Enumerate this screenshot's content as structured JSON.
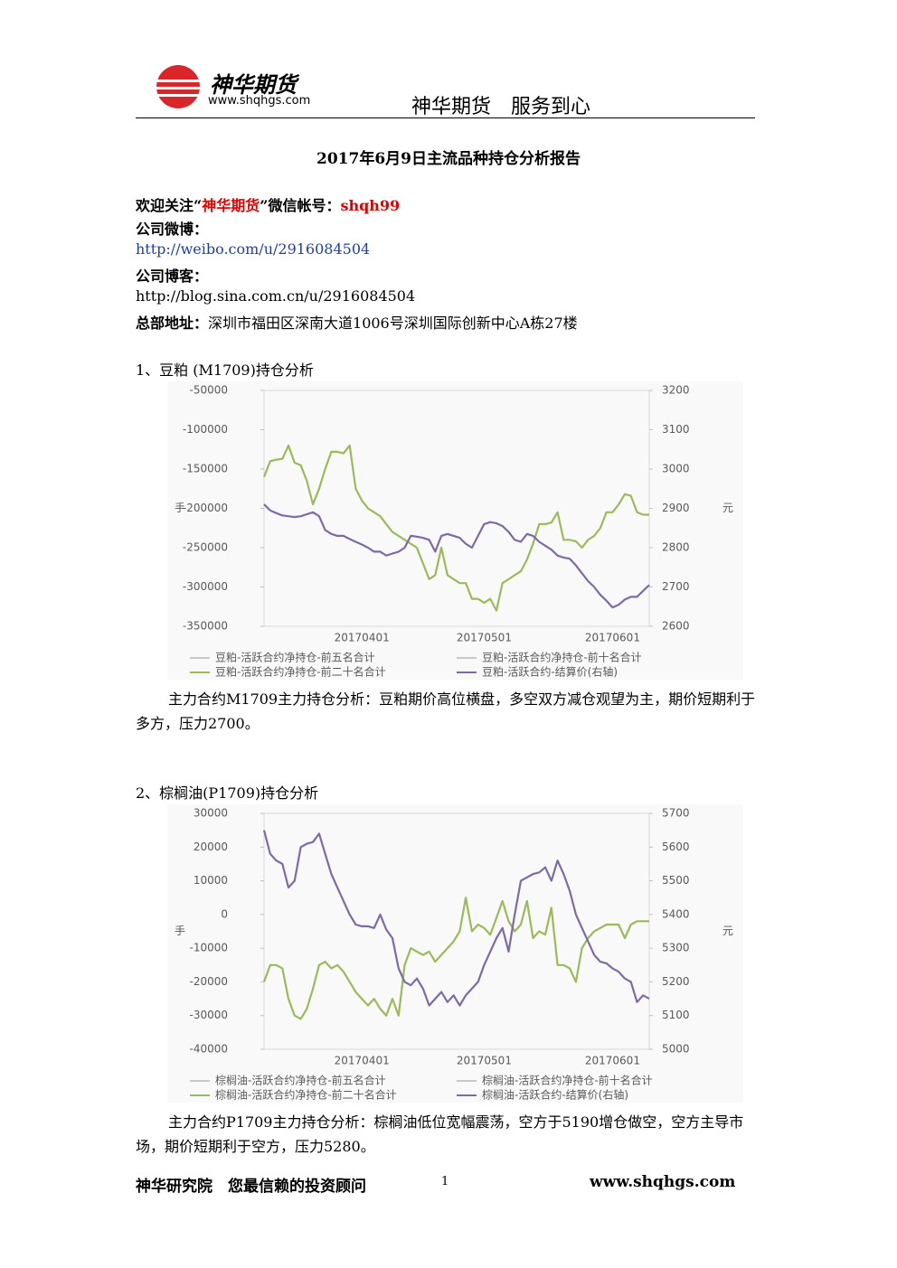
{
  "header": {
    "logo_name": "神华期货",
    "logo_url": "www.shqhgs.com",
    "slogan": "神华期货　服务到心"
  },
  "title": "2017年6月9日主流品种持仓分析报告",
  "contact": {
    "follow_prefix": "欢迎关注“",
    "follow_name": "神华期货",
    "follow_suffix": "”微信帐号：",
    "wechat": "shqh99",
    "weibo_label": "公司微博：",
    "weibo_url": "http://weibo.com/u/2916084504",
    "blog_label": "公司博客：",
    "blog_url": "http://blog.sina.com.cn/u/2916084504",
    "address_label": "总部地址：",
    "address": "深圳市福田区深南大道1006号深圳国际创新中心A栋27楼"
  },
  "sections": [
    {
      "heading": "1、豆粕 (M1709)持仓分析",
      "analysis": "主力合约M1709主力持仓分析：豆粕期价高位横盘，多空双方减仓观望为主，期价短期利于多方，压力2700。"
    },
    {
      "heading": "2、棕榈油(P1709)持仓分析",
      "analysis": "主力合约P1709主力持仓分析：棕榈油低位宽幅震荡，空方于5190增仓做空，空方主导市场，期价短期利于空方，压力5280。"
    }
  ],
  "footer": {
    "left": "神华研究院　您最信赖的投资顾问",
    "page": "1",
    "right": "www.shqhgs.com"
  },
  "chart_data": [
    {
      "type": "line",
      "ylabel": "手",
      "y2label": "元",
      "ylim": [
        -350000,
        -50000
      ],
      "yticks": [
        -350000,
        -300000,
        -250000,
        -200000,
        -150000,
        -100000,
        -50000
      ],
      "y2lim": [
        2600,
        3200
      ],
      "y2ticks": [
        2600,
        2700,
        2800,
        2900,
        3000,
        3100,
        3200
      ],
      "categories": [
        null,
        null,
        null,
        null,
        null,
        null,
        null,
        null,
        null,
        null,
        null,
        null,
        null,
        null,
        null,
        null,
        "20170401",
        null,
        null,
        null,
        null,
        null,
        null,
        null,
        null,
        null,
        null,
        null,
        null,
        null,
        null,
        null,
        null,
        null,
        null,
        null,
        "20170501",
        null,
        null,
        null,
        null,
        null,
        null,
        null,
        null,
        null,
        null,
        null,
        null,
        null,
        null,
        null,
        null,
        null,
        null,
        null,
        null,
        "20170601",
        null,
        null,
        null,
        null,
        null,
        null
      ],
      "series": [
        {
          "name": "豆粕-活跃合约净持仓-前五名合计",
          "color": "#c8c8c8"
        },
        {
          "name": "豆粕-活跃合约净持仓-前十名合计",
          "color": "#c8c8c8"
        },
        {
          "name": "豆粕-活跃合约净持仓-前二十名合计",
          "color": "#9bbb59",
          "values": [
            -160000,
            -140000,
            -138000,
            -137000,
            -120000,
            -142000,
            -145000,
            -165000,
            -195000,
            -175000,
            -150000,
            -128000,
            -128000,
            -130000,
            -120000,
            -175000,
            -190000,
            -200000,
            -205000,
            -210000,
            -220000,
            -230000,
            -235000,
            -240000,
            -245000,
            -250000,
            -270000,
            -290000,
            -285000,
            -250000,
            -285000,
            -290000,
            -295000,
            -295000,
            -315000,
            -315000,
            -320000,
            -315000,
            -330000,
            -295000,
            -290000,
            -285000,
            -280000,
            -265000,
            -245000,
            -220000,
            -220000,
            -218000,
            -205000,
            -240000,
            -240000,
            -242000,
            -250000,
            -240000,
            -235000,
            -225000,
            -205000,
            -205000,
            -195000,
            -182000,
            -184000,
            -205000,
            -208000,
            -208000
          ]
        },
        {
          "name": "豆粕-活跃合约-结算价(右轴)",
          "color": "#7d6aa8",
          "axis": "y2",
          "values": [
            2910,
            2895,
            2888,
            2882,
            2880,
            2878,
            2880,
            2885,
            2890,
            2880,
            2845,
            2835,
            2830,
            2830,
            2822,
            2815,
            2808,
            2800,
            2790,
            2790,
            2780,
            2785,
            2790,
            2800,
            2830,
            2828,
            2825,
            2820,
            2790,
            2830,
            2835,
            2830,
            2825,
            2810,
            2800,
            2830,
            2860,
            2865,
            2862,
            2855,
            2840,
            2820,
            2815,
            2835,
            2830,
            2815,
            2805,
            2795,
            2780,
            2775,
            2772,
            2755,
            2735,
            2715,
            2700,
            2680,
            2665,
            2648,
            2655,
            2668,
            2675,
            2675,
            2690,
            2705
          ]
        }
      ]
    },
    {
      "type": "line",
      "ylabel": "手",
      "y2label": "元",
      "ylim": [
        -40000,
        30000
      ],
      "yticks": [
        -40000,
        -30000,
        -20000,
        -10000,
        0,
        10000,
        20000,
        30000
      ],
      "y2lim": [
        5000,
        5700
      ],
      "y2ticks": [
        5000,
        5100,
        5200,
        5300,
        5400,
        5500,
        5600,
        5700
      ],
      "categories": [
        null,
        null,
        null,
        null,
        null,
        null,
        null,
        null,
        null,
        null,
        null,
        null,
        null,
        null,
        null,
        null,
        "20170401",
        null,
        null,
        null,
        null,
        null,
        null,
        null,
        null,
        null,
        null,
        null,
        null,
        null,
        null,
        null,
        null,
        null,
        null,
        null,
        "20170501",
        null,
        null,
        null,
        null,
        null,
        null,
        null,
        null,
        null,
        null,
        null,
        null,
        null,
        null,
        null,
        null,
        null,
        null,
        null,
        null,
        "20170601",
        null,
        null,
        null,
        null,
        null,
        null
      ],
      "series": [
        {
          "name": "棕榈油-活跃合约净持仓-前五名合计",
          "color": "#c8c8c8"
        },
        {
          "name": "棕榈油-活跃合约净持仓-前十名合计",
          "color": "#c8c8c8"
        },
        {
          "name": "棕榈油-活跃合约净持仓-前二十名合计",
          "color": "#9bbb59",
          "values": [
            -20000,
            -15000,
            -15000,
            -16000,
            -25000,
            -30000,
            -31000,
            -28000,
            -22000,
            -15000,
            -14000,
            -16000,
            -15000,
            -17000,
            -20000,
            -23000,
            -25000,
            -27000,
            -25000,
            -28000,
            -30000,
            -25000,
            -30000,
            -15000,
            -10000,
            -11000,
            -12000,
            -11000,
            -14000,
            -12000,
            -10000,
            -8000,
            -5000,
            5000,
            -5000,
            -3000,
            -4000,
            -6000,
            -1000,
            4000,
            -2000,
            -5000,
            -3000,
            4000,
            -7000,
            -5000,
            -6000,
            2000,
            -15000,
            -15000,
            -16000,
            -20000,
            -10000,
            -7000,
            -5000,
            -4000,
            -3000,
            -3000,
            -3000,
            -7000,
            -3000,
            -2000,
            -2000,
            -2000
          ]
        },
        {
          "name": "棕榈油-活跃合约-结算价(右轴)",
          "color": "#7d6aa8",
          "axis": "y2",
          "values": [
            5650,
            5580,
            5560,
            5550,
            5480,
            5500,
            5600,
            5610,
            5615,
            5640,
            5580,
            5520,
            5480,
            5440,
            5400,
            5370,
            5365,
            5365,
            5360,
            5400,
            5355,
            5330,
            5240,
            5200,
            5190,
            5210,
            5180,
            5130,
            5150,
            5170,
            5140,
            5160,
            5130,
            5160,
            5180,
            5200,
            5250,
            5290,
            5330,
            5360,
            5290,
            5400,
            5500,
            5510,
            5520,
            5525,
            5540,
            5500,
            5560,
            5520,
            5470,
            5400,
            5360,
            5320,
            5280,
            5260,
            5255,
            5240,
            5230,
            5210,
            5200,
            5140,
            5160,
            5150
          ]
        }
      ]
    }
  ]
}
